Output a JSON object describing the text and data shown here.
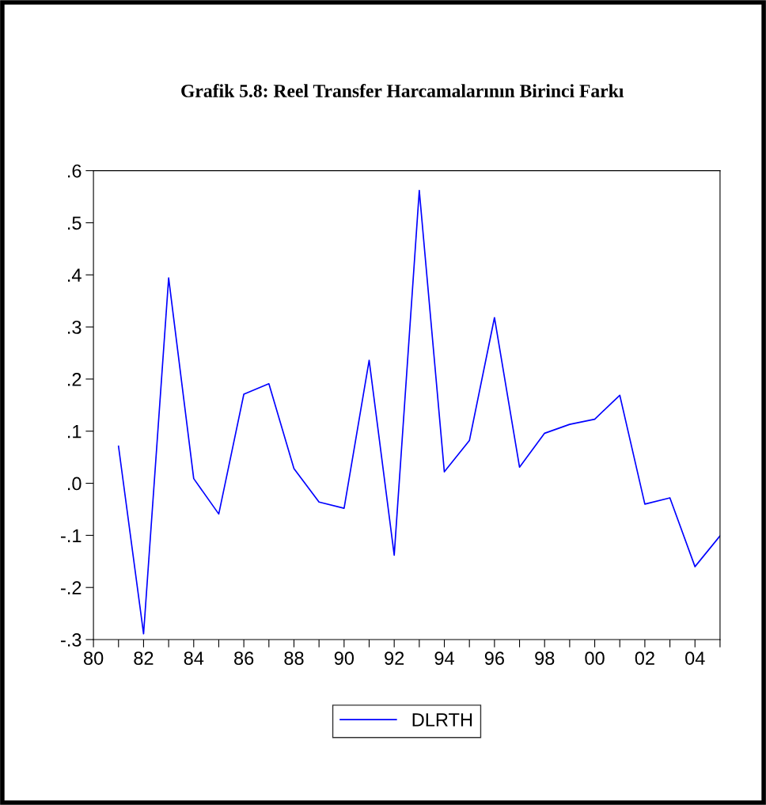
{
  "chart_data": {
    "type": "line",
    "title": "Grafik 5.8: Reel Transfer Harcamalarının Birinci Farkı",
    "x": [
      1981,
      1982,
      1983,
      1984,
      1985,
      1986,
      1987,
      1988,
      1989,
      1990,
      1991,
      1992,
      1993,
      1994,
      1995,
      1996,
      1997,
      1998,
      1999,
      2000,
      2001,
      2002,
      2003,
      2004,
      2005
    ],
    "series": [
      {
        "name": "DLRTH",
        "color": "#0000ff",
        "values": [
          0.071,
          -0.289,
          0.394,
          0.009,
          -0.059,
          0.171,
          0.191,
          0.028,
          -0.036,
          -0.048,
          0.236,
          -0.138,
          0.562,
          0.022,
          0.082,
          0.318,
          0.031,
          0.096,
          0.113,
          0.123,
          0.169,
          -0.04,
          -0.028,
          -0.16,
          -0.101
        ]
      }
    ],
    "xlim": [
      1980,
      2005
    ],
    "xticks": [
      {
        "value": 1980,
        "label": "80"
      },
      {
        "value": 1981,
        "label": null
      },
      {
        "value": 1982,
        "label": "82"
      },
      {
        "value": 1983,
        "label": null
      },
      {
        "value": 1984,
        "label": "84"
      },
      {
        "value": 1985,
        "label": null
      },
      {
        "value": 1986,
        "label": "86"
      },
      {
        "value": 1987,
        "label": null
      },
      {
        "value": 1988,
        "label": "88"
      },
      {
        "value": 1989,
        "label": null
      },
      {
        "value": 1990,
        "label": "90"
      },
      {
        "value": 1991,
        "label": null
      },
      {
        "value": 1992,
        "label": "92"
      },
      {
        "value": 1993,
        "label": null
      },
      {
        "value": 1994,
        "label": "94"
      },
      {
        "value": 1995,
        "label": null
      },
      {
        "value": 1996,
        "label": "96"
      },
      {
        "value": 1997,
        "label": null
      },
      {
        "value": 1998,
        "label": "98"
      },
      {
        "value": 1999,
        "label": null
      },
      {
        "value": 2000,
        "label": "00"
      },
      {
        "value": 2001,
        "label": null
      },
      {
        "value": 2002,
        "label": "02"
      },
      {
        "value": 2003,
        "label": null
      },
      {
        "value": 2004,
        "label": "04"
      },
      {
        "value": 2005,
        "label": null
      }
    ],
    "ylim": [
      -0.3,
      0.6
    ],
    "yticks": [
      {
        "value": -0.3,
        "label": "-.3"
      },
      {
        "value": -0.2,
        "label": "-.2"
      },
      {
        "value": -0.1,
        "label": "-.1"
      },
      {
        "value": 0.0,
        "label": ".0"
      },
      {
        "value": 0.1,
        "label": ".1"
      },
      {
        "value": 0.2,
        "label": ".2"
      },
      {
        "value": 0.3,
        "label": ".3"
      },
      {
        "value": 0.4,
        "label": ".4"
      },
      {
        "value": 0.5,
        "label": ".5"
      },
      {
        "value": 0.6,
        "label": ".6"
      }
    ],
    "grid": false,
    "legend": "bottom",
    "line_style": "solid"
  }
}
